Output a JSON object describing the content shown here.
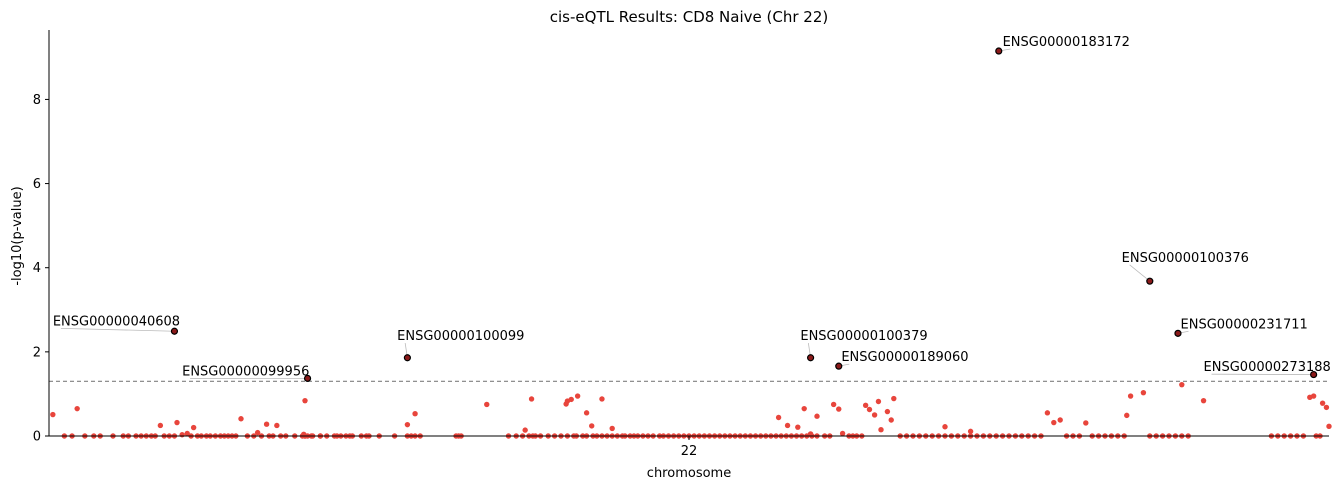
{
  "chart_data": {
    "type": "scatter",
    "title": "cis-eQTL Results: CD8 Naive (Chr 22)",
    "xlabel": "chromosome",
    "ylabel": "-log10(p-value)",
    "x_ticks": [
      "22"
    ],
    "y_ticks": [
      0,
      2,
      4,
      6,
      8
    ],
    "ylim": [
      0,
      9.65
    ],
    "xlim": [
      0,
      1
    ],
    "threshold": 1.3,
    "point_color": "#e8453c",
    "highlight_color": "#8b1a1a",
    "highlight_edge": "#000000",
    "threshold_color": "#808080",
    "points": [
      [
        0.003,
        0.51
      ],
      [
        0.012,
        0.0
      ],
      [
        0.018,
        0.0
      ],
      [
        0.022,
        0.65
      ],
      [
        0.028,
        0.0
      ],
      [
        0.035,
        0.0
      ],
      [
        0.04,
        0.0
      ],
      [
        0.05,
        0.0
      ],
      [
        0.058,
        0.0
      ],
      [
        0.062,
        0.0
      ],
      [
        0.068,
        0.0
      ],
      [
        0.072,
        0.0
      ],
      [
        0.076,
        0.0
      ],
      [
        0.08,
        0.0
      ],
      [
        0.083,
        0.0
      ],
      [
        0.087,
        0.25
      ],
      [
        0.09,
        0.0
      ],
      [
        0.094,
        0.0
      ],
      [
        0.098,
        0.0
      ],
      [
        0.1,
        0.32
      ],
      [
        0.104,
        0.03
      ],
      [
        0.108,
        0.06
      ],
      [
        0.111,
        0.0
      ],
      [
        0.113,
        0.2
      ],
      [
        0.116,
        0.0
      ],
      [
        0.119,
        0.0
      ],
      [
        0.123,
        0.0
      ],
      [
        0.126,
        0.0
      ],
      [
        0.13,
        0.0
      ],
      [
        0.134,
        0.0
      ],
      [
        0.137,
        0.0
      ],
      [
        0.14,
        0.0
      ],
      [
        0.143,
        0.0
      ],
      [
        0.146,
        0.0
      ],
      [
        0.15,
        0.41
      ],
      [
        0.155,
        0.0
      ],
      [
        0.16,
        0.0
      ],
      [
        0.163,
        0.08
      ],
      [
        0.166,
        0.0
      ],
      [
        0.17,
        0.28
      ],
      [
        0.172,
        0.0
      ],
      [
        0.175,
        0.0
      ],
      [
        0.178,
        0.25
      ],
      [
        0.181,
        0.0
      ],
      [
        0.185,
        0.0
      ],
      [
        0.192,
        0.0
      ],
      [
        0.2,
        0.0
      ],
      [
        0.205,
        0.0
      ],
      [
        0.212,
        0.0
      ],
      [
        0.225,
        0.0
      ],
      [
        0.235,
        0.0
      ],
      [
        0.248,
        0.0
      ],
      [
        0.2,
        0.0
      ],
      [
        0.198,
        0.0
      ],
      [
        0.199,
        0.04
      ],
      [
        0.2,
        0.84
      ],
      [
        0.202,
        0.0
      ],
      [
        0.206,
        0.0
      ],
      [
        0.212,
        0.0
      ],
      [
        0.217,
        0.0
      ],
      [
        0.223,
        0.0
      ],
      [
        0.228,
        0.0
      ],
      [
        0.232,
        0.0
      ],
      [
        0.237,
        0.0
      ],
      [
        0.244,
        0.0
      ],
      [
        0.25,
        0.0
      ],
      [
        0.258,
        0.0
      ],
      [
        0.27,
        0.0
      ],
      [
        0.28,
        0.0
      ],
      [
        0.283,
        0.0
      ],
      [
        0.286,
        0.0
      ],
      [
        0.28,
        0.27
      ],
      [
        0.286,
        0.53
      ],
      [
        0.29,
        0.0
      ],
      [
        0.318,
        0.0
      ],
      [
        0.32,
        0.0
      ],
      [
        0.322,
        0.0
      ],
      [
        0.342,
        0.75
      ],
      [
        0.359,
        0.0
      ],
      [
        0.365,
        0.0
      ],
      [
        0.37,
        0.0
      ],
      [
        0.372,
        0.14
      ],
      [
        0.375,
        0.0
      ],
      [
        0.378,
        0.0
      ],
      [
        0.38,
        0.0
      ],
      [
        0.384,
        0.0
      ],
      [
        0.39,
        0.0
      ],
      [
        0.395,
        0.0
      ],
      [
        0.4,
        0.0
      ],
      [
        0.405,
        0.0
      ],
      [
        0.41,
        0.0
      ],
      [
        0.377,
        0.88
      ],
      [
        0.404,
        0.76
      ],
      [
        0.408,
        0.87
      ],
      [
        0.413,
        0.95
      ],
      [
        0.405,
        0.83
      ],
      [
        0.412,
        0.0
      ],
      [
        0.417,
        0.0
      ],
      [
        0.42,
        0.0
      ],
      [
        0.425,
        0.0
      ],
      [
        0.428,
        0.0
      ],
      [
        0.432,
        0.0
      ],
      [
        0.436,
        0.0
      ],
      [
        0.44,
        0.0
      ],
      [
        0.444,
        0.0
      ],
      [
        0.448,
        0.0
      ],
      [
        0.42,
        0.55
      ],
      [
        0.424,
        0.24
      ],
      [
        0.432,
        0.88
      ],
      [
        0.44,
        0.18
      ],
      [
        0.45,
        0.0
      ],
      [
        0.454,
        0.0
      ],
      [
        0.457,
        0.0
      ],
      [
        0.46,
        0.0
      ],
      [
        0.464,
        0.0
      ],
      [
        0.468,
        0.0
      ],
      [
        0.472,
        0.0
      ],
      [
        0.477,
        0.0
      ],
      [
        0.48,
        0.0
      ],
      [
        0.484,
        0.0
      ],
      [
        0.488,
        0.0
      ],
      [
        0.492,
        0.0
      ],
      [
        0.496,
        0.0
      ],
      [
        0.5,
        0.0
      ],
      [
        0.504,
        0.0
      ],
      [
        0.508,
        0.0
      ],
      [
        0.512,
        0.0
      ],
      [
        0.516,
        0.0
      ],
      [
        0.52,
        0.0
      ],
      [
        0.524,
        0.0
      ],
      [
        0.528,
        0.0
      ],
      [
        0.532,
        0.0
      ],
      [
        0.536,
        0.0
      ],
      [
        0.54,
        0.0
      ],
      [
        0.544,
        0.0
      ],
      [
        0.548,
        0.0
      ],
      [
        0.552,
        0.0
      ],
      [
        0.556,
        0.0
      ],
      [
        0.56,
        0.0
      ],
      [
        0.564,
        0.0
      ],
      [
        0.568,
        0.0
      ],
      [
        0.572,
        0.0
      ],
      [
        0.576,
        0.0
      ],
      [
        0.58,
        0.0
      ],
      [
        0.584,
        0.0
      ],
      [
        0.588,
        0.0
      ],
      [
        0.592,
        0.0
      ],
      [
        0.596,
        0.0
      ],
      [
        0.6,
        0.0
      ],
      [
        0.57,
        0.44
      ],
      [
        0.577,
        0.25
      ],
      [
        0.585,
        0.21
      ],
      [
        0.59,
        0.65
      ],
      [
        0.595,
        0.05
      ],
      [
        0.6,
        0.47
      ],
      [
        0.606,
        0.0
      ],
      [
        0.61,
        0.0
      ],
      [
        0.613,
        0.75
      ],
      [
        0.617,
        0.64
      ],
      [
        0.62,
        0.06
      ],
      [
        0.625,
        0.0
      ],
      [
        0.628,
        0.0
      ],
      [
        0.631,
        0.0
      ],
      [
        0.635,
        0.0
      ],
      [
        0.638,
        0.73
      ],
      [
        0.641,
        0.63
      ],
      [
        0.645,
        0.5
      ],
      [
        0.648,
        0.82
      ],
      [
        0.65,
        0.15
      ],
      [
        0.655,
        0.58
      ],
      [
        0.658,
        0.38
      ],
      [
        0.66,
        0.89
      ],
      [
        0.665,
        0.0
      ],
      [
        0.67,
        0.0
      ],
      [
        0.675,
        0.0
      ],
      [
        0.68,
        0.0
      ],
      [
        0.685,
        0.0
      ],
      [
        0.69,
        0.0
      ],
      [
        0.695,
        0.0
      ],
      [
        0.7,
        0.0
      ],
      [
        0.705,
        0.0
      ],
      [
        0.71,
        0.0
      ],
      [
        0.715,
        0.0
      ],
      [
        0.72,
        0.0
      ],
      [
        0.725,
        0.0
      ],
      [
        0.73,
        0.0
      ],
      [
        0.735,
        0.0
      ],
      [
        0.74,
        0.0
      ],
      [
        0.745,
        0.0
      ],
      [
        0.75,
        0.0
      ],
      [
        0.7,
        0.22
      ],
      [
        0.72,
        0.11
      ],
      [
        0.755,
        0.0
      ],
      [
        0.76,
        0.0
      ],
      [
        0.765,
        0.0
      ],
      [
        0.77,
        0.0
      ],
      [
        0.775,
        0.0
      ],
      [
        0.78,
        0.55
      ],
      [
        0.785,
        0.32
      ],
      [
        0.79,
        0.38
      ],
      [
        0.795,
        0.0
      ],
      [
        0.8,
        0.0
      ],
      [
        0.805,
        0.0
      ],
      [
        0.81,
        0.31
      ],
      [
        0.815,
        0.0
      ],
      [
        0.82,
        0.0
      ],
      [
        0.825,
        0.0
      ],
      [
        0.83,
        0.0
      ],
      [
        0.835,
        0.0
      ],
      [
        0.84,
        0.0
      ],
      [
        0.842,
        0.49
      ],
      [
        0.845,
        0.95
      ],
      [
        0.855,
        1.03
      ],
      [
        0.86,
        0.0
      ],
      [
        0.865,
        0.0
      ],
      [
        0.87,
        0.0
      ],
      [
        0.875,
        0.0
      ],
      [
        0.88,
        0.0
      ],
      [
        0.885,
        0.0
      ],
      [
        0.89,
        0.0
      ],
      [
        0.885,
        1.22
      ],
      [
        0.902,
        0.84
      ],
      [
        0.955,
        0.0
      ],
      [
        0.96,
        0.0
      ],
      [
        0.965,
        0.0
      ],
      [
        0.97,
        0.0
      ],
      [
        0.975,
        0.0
      ],
      [
        0.98,
        0.0
      ],
      [
        0.985,
        0.92
      ],
      [
        0.988,
        0.95
      ],
      [
        0.99,
        0.0
      ],
      [
        0.993,
        0.0
      ],
      [
        0.995,
        0.78
      ],
      [
        0.998,
        0.68
      ],
      [
        1.0,
        0.23
      ]
    ],
    "highlights": [
      {
        "x": 0.098,
        "y": 2.49,
        "label": "ENSG00000040608",
        "lx": 0.003,
        "ly": 2.63
      },
      {
        "x": 0.202,
        "y": 1.37,
        "label": "ENSG00000099956",
        "lx": 0.104,
        "ly": 1.44
      },
      {
        "x": 0.28,
        "y": 1.86,
        "label": "ENSG00000100099",
        "lx": 0.272,
        "ly": 2.28
      },
      {
        "x": 0.595,
        "y": 1.86,
        "label": "ENSG00000100379",
        "lx": 0.587,
        "ly": 2.28
      },
      {
        "x": 0.617,
        "y": 1.66,
        "label": "ENSG00000189060",
        "lx": 0.619,
        "ly": 1.78
      },
      {
        "x": 0.742,
        "y": 9.15,
        "label": "ENSG00000183172",
        "lx": 0.745,
        "ly": 9.27
      },
      {
        "x": 0.86,
        "y": 3.68,
        "label": "ENSG00000100376",
        "lx": 0.838,
        "ly": 4.14
      },
      {
        "x": 0.882,
        "y": 2.44,
        "label": "ENSG00000231711",
        "lx": 0.884,
        "ly": 2.56
      },
      {
        "x": 0.988,
        "y": 1.46,
        "label": "ENSG00000273188",
        "lx": 0.902,
        "ly": 1.54
      }
    ]
  }
}
